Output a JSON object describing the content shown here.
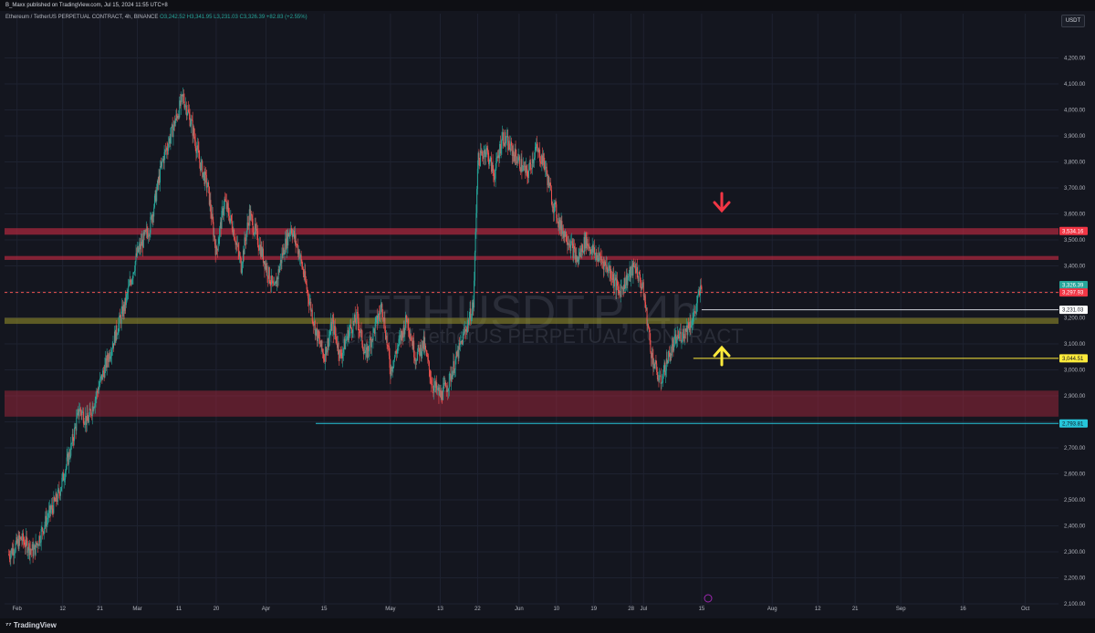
{
  "header": {
    "publisher": "B_Maxx published on TradingView.com, Jul 15, 2024 11:55 UTC+8"
  },
  "legend": {
    "symbol": "Ethereum / TetherUS PERPETUAL CONTRACT, 4h, BINANCE",
    "o": "O3,242.52",
    "h": "H3,341.95",
    "l": "L3,231.03",
    "c": "C3,326.39",
    "chg": "+82.83 (+2.55%)"
  },
  "currency_button": "USDT",
  "watermark": {
    "main": "ETHUSDT.P, 4h",
    "sub": "Ethereum / TetherUS PERPETUAL CONTRACT"
  },
  "footer": {
    "brand": "TradingView"
  },
  "colors": {
    "bg": "#14161f",
    "up": "#26a69a",
    "down": "#ef5350",
    "resist": "#b2283f",
    "support": "#8f8a2a",
    "arrow_down": "#f23645",
    "arrow_up": "#ffeb3b"
  },
  "chart_data": {
    "type": "candlestick",
    "ylim": [
      2100,
      4300
    ],
    "y_ticks": [
      "2,100.00",
      "2,200.00",
      "2,300.00",
      "2,400.00",
      "2,500.00",
      "2,600.00",
      "2,700.00",
      "2,800.00",
      "2,900.00",
      "3,000.00",
      "3,100.00",
      "3,200.00",
      "3,300.00",
      "3,400.00",
      "3,500.00",
      "3,600.00",
      "3,700.00",
      "3,800.00",
      "3,900.00",
      "4,000.00",
      "4,100.00",
      "4,200.00"
    ],
    "x_ticks": [
      {
        "label": "Feb",
        "day": 0
      },
      {
        "label": "12",
        "day": 11
      },
      {
        "label": "21",
        "day": 20
      },
      {
        "label": "Mar",
        "day": 29
      },
      {
        "label": "11",
        "day": 39
      },
      {
        "label": "20",
        "day": 48
      },
      {
        "label": "Apr",
        "day": 60
      },
      {
        "label": "15",
        "day": 74
      },
      {
        "label": "May",
        "day": 90
      },
      {
        "label": "13",
        "day": 102
      },
      {
        "label": "22",
        "day": 111
      },
      {
        "label": "Jun",
        "day": 121
      },
      {
        "label": "10",
        "day": 130
      },
      {
        "label": "19",
        "day": 139
      },
      {
        "label": "28",
        "day": 148
      },
      {
        "label": "Jul",
        "day": 151
      },
      {
        "label": "15",
        "day": 165
      },
      {
        "label": "Aug",
        "day": 182
      },
      {
        "label": "12",
        "day": 193
      },
      {
        "label": "21",
        "day": 202
      },
      {
        "label": "Sep",
        "day": 213
      },
      {
        "label": "16",
        "day": 228
      },
      {
        "label": "Oct",
        "day": 243
      }
    ],
    "x_range_days": [
      -3,
      251
    ],
    "price_path": [
      [
        -2,
        2290
      ],
      [
        1,
        2350
      ],
      [
        4,
        2300
      ],
      [
        7,
        2420
      ],
      [
        10,
        2520
      ],
      [
        13,
        2700
      ],
      [
        15,
        2850
      ],
      [
        17,
        2800
      ],
      [
        20,
        2950
      ],
      [
        23,
        3100
      ],
      [
        26,
        3250
      ],
      [
        29,
        3450
      ],
      [
        32,
        3550
      ],
      [
        35,
        3800
      ],
      [
        38,
        3950
      ],
      [
        40,
        4050
      ],
      [
        42,
        3950
      ],
      [
        44,
        3800
      ],
      [
        46,
        3700
      ],
      [
        48,
        3450
      ],
      [
        50,
        3650
      ],
      [
        52,
        3550
      ],
      [
        54,
        3400
      ],
      [
        56,
        3600
      ],
      [
        58,
        3500
      ],
      [
        60,
        3400
      ],
      [
        62,
        3300
      ],
      [
        64,
        3450
      ],
      [
        66,
        3550
      ],
      [
        68,
        3450
      ],
      [
        70,
        3300
      ],
      [
        72,
        3150
      ],
      [
        74,
        3050
      ],
      [
        76,
        3180
      ],
      [
        78,
        3050
      ],
      [
        80,
        3150
      ],
      [
        82,
        3200
      ],
      [
        84,
        3050
      ],
      [
        86,
        3150
      ],
      [
        88,
        3250
      ],
      [
        90,
        3000
      ],
      [
        92,
        3100
      ],
      [
        94,
        3200
      ],
      [
        96,
        3050
      ],
      [
        98,
        3100
      ],
      [
        100,
        2950
      ],
      [
        102,
        2900
      ],
      [
        104,
        2950
      ],
      [
        106,
        3050
      ],
      [
        108,
        3150
      ],
      [
        110,
        3250
      ],
      [
        111,
        3800
      ],
      [
        113,
        3850
      ],
      [
        115,
        3750
      ],
      [
        117,
        3900
      ],
      [
        119,
        3850
      ],
      [
        121,
        3800
      ],
      [
        123,
        3750
      ],
      [
        125,
        3850
      ],
      [
        127,
        3800
      ],
      [
        129,
        3650
      ],
      [
        131,
        3550
      ],
      [
        133,
        3500
      ],
      [
        135,
        3420
      ],
      [
        137,
        3500
      ],
      [
        139,
        3450
      ],
      [
        141,
        3420
      ],
      [
        143,
        3380
      ],
      [
        145,
        3300
      ],
      [
        147,
        3350
      ],
      [
        149,
        3400
      ],
      [
        151,
        3300
      ],
      [
        153,
        3050
      ],
      [
        155,
        2950
      ],
      [
        157,
        3050
      ],
      [
        159,
        3120
      ],
      [
        161,
        3150
      ],
      [
        163,
        3200
      ],
      [
        165,
        3326
      ]
    ],
    "highlighted_prices": [
      {
        "label": "3,534.16",
        "value": 3534.16
      },
      {
        "label": "3,326.39",
        "value": 3326.39
      },
      {
        "label": "3,297.93",
        "value": 3297.93
      },
      {
        "label": "3,231.03",
        "value": 3231.03
      },
      {
        "label": "3,044.51",
        "value": 3044.51
      },
      {
        "label": "2,793.81",
        "value": 2793.81
      }
    ],
    "zones": [
      {
        "kind": "resistance",
        "from": 3520,
        "to": 3545
      },
      {
        "kind": "resistance",
        "from": 3423,
        "to": 3438
      },
      {
        "kind": "support",
        "from": 3177,
        "to": 3200
      },
      {
        "kind": "demand",
        "from": 2820,
        "to": 2920
      }
    ]
  }
}
